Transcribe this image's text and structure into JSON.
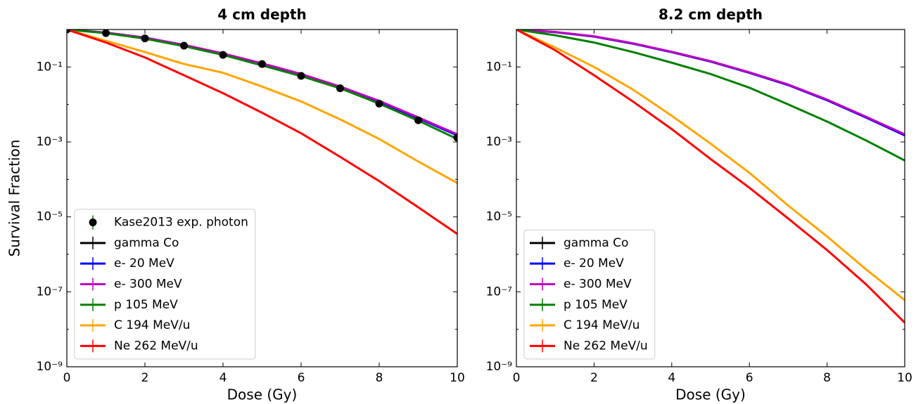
{
  "chart_data": [
    {
      "type": "line",
      "title": "4 cm depth",
      "xlabel": "Dose (Gy)",
      "ylabel": "Survival Fraction",
      "log_y": true,
      "legend": "lower left",
      "xlim": [
        0,
        10
      ],
      "xticks": [
        0,
        2,
        4,
        6,
        8,
        10
      ],
      "ylim": [
        1e-09,
        1
      ],
      "yticks": [
        {
          "value": 1e-09,
          "label": "10⁻⁹"
        },
        {
          "value": 1e-07,
          "label": "10⁻⁷"
        },
        {
          "value": 1e-05,
          "label": "10⁻⁵"
        },
        {
          "value": 0.001,
          "label": "10⁻³"
        },
        {
          "value": 0.1,
          "label": "10⁻¹"
        }
      ],
      "x": [
        0,
        1,
        2,
        3,
        4,
        5,
        6,
        7,
        8,
        9,
        10
      ],
      "series": [
        {
          "name": "Kase2013 exp. photon",
          "type": "scatter",
          "color": "#000000",
          "error_color": "#008000",
          "values": [
            1,
            0.8,
            0.58,
            0.37,
            0.21,
            0.12,
            0.058,
            0.027,
            0.0105,
            0.0038,
            0.0013
          ]
        },
        {
          "name": "gamma Co",
          "color": "#000000",
          "values": [
            1,
            0.82,
            0.6,
            0.38,
            0.22,
            0.12,
            0.062,
            0.029,
            0.012,
            0.0043,
            0.0015
          ]
        },
        {
          "name": "e- 20 MeV",
          "color": "#0000ff",
          "values": [
            1,
            0.82,
            0.6,
            0.38,
            0.22,
            0.12,
            0.062,
            0.029,
            0.012,
            0.0043,
            0.0015
          ]
        },
        {
          "name": "e- 300 MeV",
          "color": "#bf00bf",
          "values": [
            1,
            0.83,
            0.61,
            0.39,
            0.23,
            0.125,
            0.065,
            0.03,
            0.0125,
            0.0045,
            0.0016
          ]
        },
        {
          "name": "p 105 MeV",
          "color": "#008000",
          "values": [
            1,
            0.8,
            0.57,
            0.36,
            0.21,
            0.11,
            0.057,
            0.027,
            0.0105,
            0.0037,
            0.0012
          ]
        },
        {
          "name": "C 194 MeV/u",
          "color": "#ffa500",
          "values": [
            1,
            0.5,
            0.25,
            0.12,
            0.07,
            0.03,
            0.012,
            0.004,
            0.0012,
            0.0003,
            8e-05
          ]
        },
        {
          "name": "Ne 262 MeV/u",
          "color": "#ff0000",
          "values": [
            1,
            0.45,
            0.18,
            0.06,
            0.02,
            0.006,
            0.0017,
            0.0004,
            9e-05,
            1.8e-05,
            3.5e-06
          ]
        }
      ]
    },
    {
      "type": "line",
      "title": "8.2 cm depth",
      "xlabel": "Dose (Gy)",
      "log_y": true,
      "legend": "lower left",
      "xlim": [
        0,
        10
      ],
      "xticks": [
        0,
        2,
        4,
        6,
        8,
        10
      ],
      "ylim": [
        1e-09,
        1
      ],
      "yticks": [
        {
          "value": 1e-09,
          "label": "10⁻⁹"
        },
        {
          "value": 1e-07,
          "label": "10⁻⁷"
        },
        {
          "value": 1e-05,
          "label": "10⁻⁵"
        },
        {
          "value": 0.001,
          "label": "10⁻³"
        },
        {
          "value": 0.1,
          "label": "10⁻¹"
        }
      ],
      "x": [
        0,
        1,
        2,
        3,
        4,
        5,
        6,
        7,
        8,
        9,
        10
      ],
      "series": [
        {
          "name": "gamma Co",
          "color": "#000000",
          "values": [
            1,
            0.85,
            0.65,
            0.42,
            0.25,
            0.14,
            0.07,
            0.033,
            0.013,
            0.0045,
            0.0015
          ]
        },
        {
          "name": "e- 20 MeV",
          "color": "#0000ff",
          "values": [
            1,
            0.85,
            0.65,
            0.42,
            0.25,
            0.14,
            0.07,
            0.033,
            0.013,
            0.0045,
            0.0015
          ]
        },
        {
          "name": "e- 300 MeV",
          "color": "#bf00bf",
          "values": [
            1,
            0.86,
            0.66,
            0.43,
            0.255,
            0.143,
            0.072,
            0.034,
            0.0135,
            0.0047,
            0.0016
          ]
        },
        {
          "name": "p 105 MeV",
          "color": "#008000",
          "values": [
            1,
            0.7,
            0.45,
            0.25,
            0.13,
            0.065,
            0.028,
            0.01,
            0.0035,
            0.0011,
            0.00032
          ]
        },
        {
          "name": "C 194 MeV/u",
          "color": "#ffa500",
          "values": [
            1,
            0.33,
            0.1,
            0.025,
            0.005,
            0.0009,
            0.00015,
            2e-05,
            3e-06,
            4e-07,
            6e-08
          ]
        },
        {
          "name": "Ne 262 MeV/u",
          "color": "#ff0000",
          "values": [
            1,
            0.28,
            0.06,
            0.012,
            0.0022,
            0.00035,
            6e-05,
            9e-06,
            1.3e-06,
            1.6e-07,
            1.5e-08
          ]
        }
      ]
    }
  ]
}
